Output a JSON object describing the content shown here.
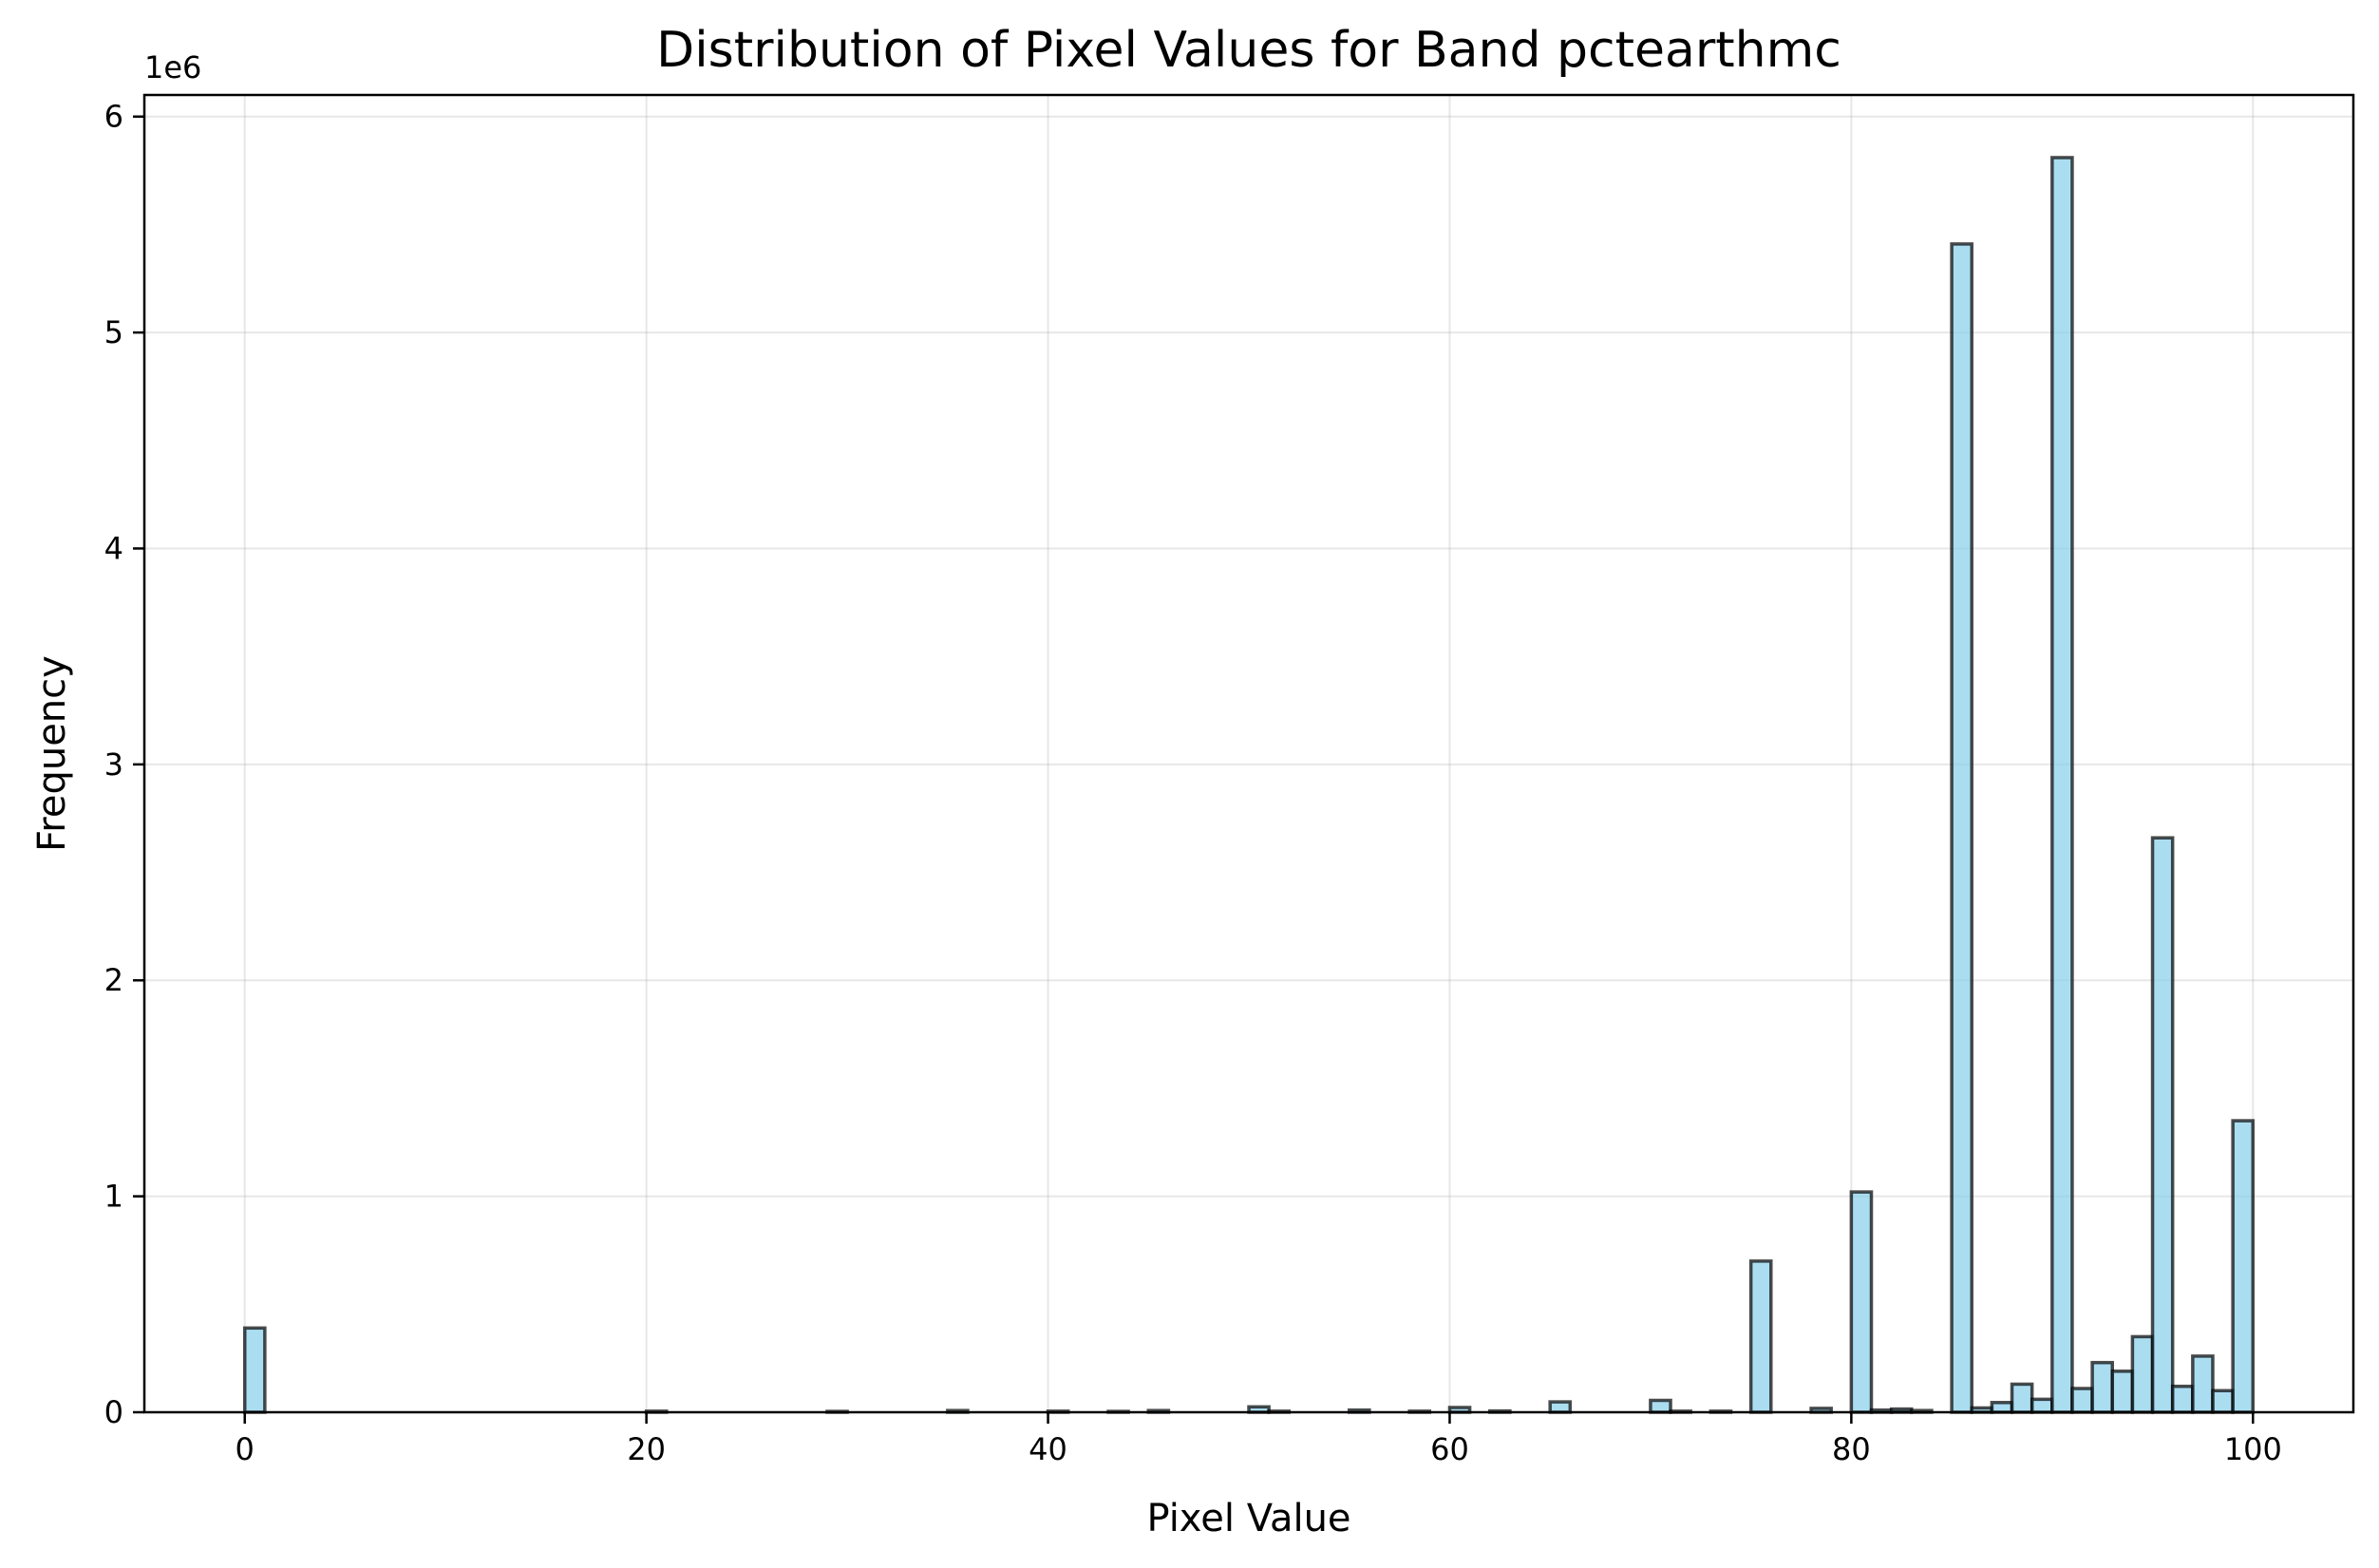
{
  "chart_data": {
    "type": "bar",
    "title": "Distribution of Pixel Values for Band pctearthmc",
    "xlabel": "Pixel Value",
    "ylabel": "Frequency",
    "y_offset_label": "1e6",
    "xlim": [
      -5,
      105
    ],
    "ylim": [
      0,
      6.1
    ],
    "x_ticks": [
      0,
      20,
      40,
      60,
      80,
      100
    ],
    "y_ticks": [
      0,
      1,
      2,
      3,
      4,
      5,
      6
    ],
    "grid": true,
    "bin_width": 1,
    "bins": [
      {
        "x": 0,
        "value": 0.39
      },
      {
        "x": 20,
        "value": 0.005
      },
      {
        "x": 29,
        "value": 0.004
      },
      {
        "x": 35,
        "value": 0.008
      },
      {
        "x": 40,
        "value": 0.005
      },
      {
        "x": 43,
        "value": 0.004
      },
      {
        "x": 45,
        "value": 0.008
      },
      {
        "x": 50,
        "value": 0.025
      },
      {
        "x": 51,
        "value": 0.005
      },
      {
        "x": 55,
        "value": 0.01
      },
      {
        "x": 58,
        "value": 0.005
      },
      {
        "x": 60,
        "value": 0.022
      },
      {
        "x": 62,
        "value": 0.006
      },
      {
        "x": 65,
        "value": 0.048
      },
      {
        "x": 70,
        "value": 0.055
      },
      {
        "x": 71,
        "value": 0.005
      },
      {
        "x": 73,
        "value": 0.005
      },
      {
        "x": 75,
        "value": 0.7
      },
      {
        "x": 78,
        "value": 0.018
      },
      {
        "x": 80,
        "value": 1.02
      },
      {
        "x": 81,
        "value": 0.01
      },
      {
        "x": 82,
        "value": 0.015
      },
      {
        "x": 83,
        "value": 0.008
      },
      {
        "x": 85,
        "value": 5.41
      },
      {
        "x": 86,
        "value": 0.02
      },
      {
        "x": 87,
        "value": 0.045
      },
      {
        "x": 88,
        "value": 0.13
      },
      {
        "x": 89,
        "value": 0.06
      },
      {
        "x": 90,
        "value": 5.81
      },
      {
        "x": 91,
        "value": 0.11
      },
      {
        "x": 92,
        "value": 0.23
      },
      {
        "x": 93,
        "value": 0.19
      },
      {
        "x": 94,
        "value": 0.35
      },
      {
        "x": 95,
        "value": 2.66
      },
      {
        "x": 96,
        "value": 0.12
      },
      {
        "x": 97,
        "value": 0.26
      },
      {
        "x": 98,
        "value": 0.1
      },
      {
        "x": 99,
        "value": 1.35
      }
    ]
  }
}
